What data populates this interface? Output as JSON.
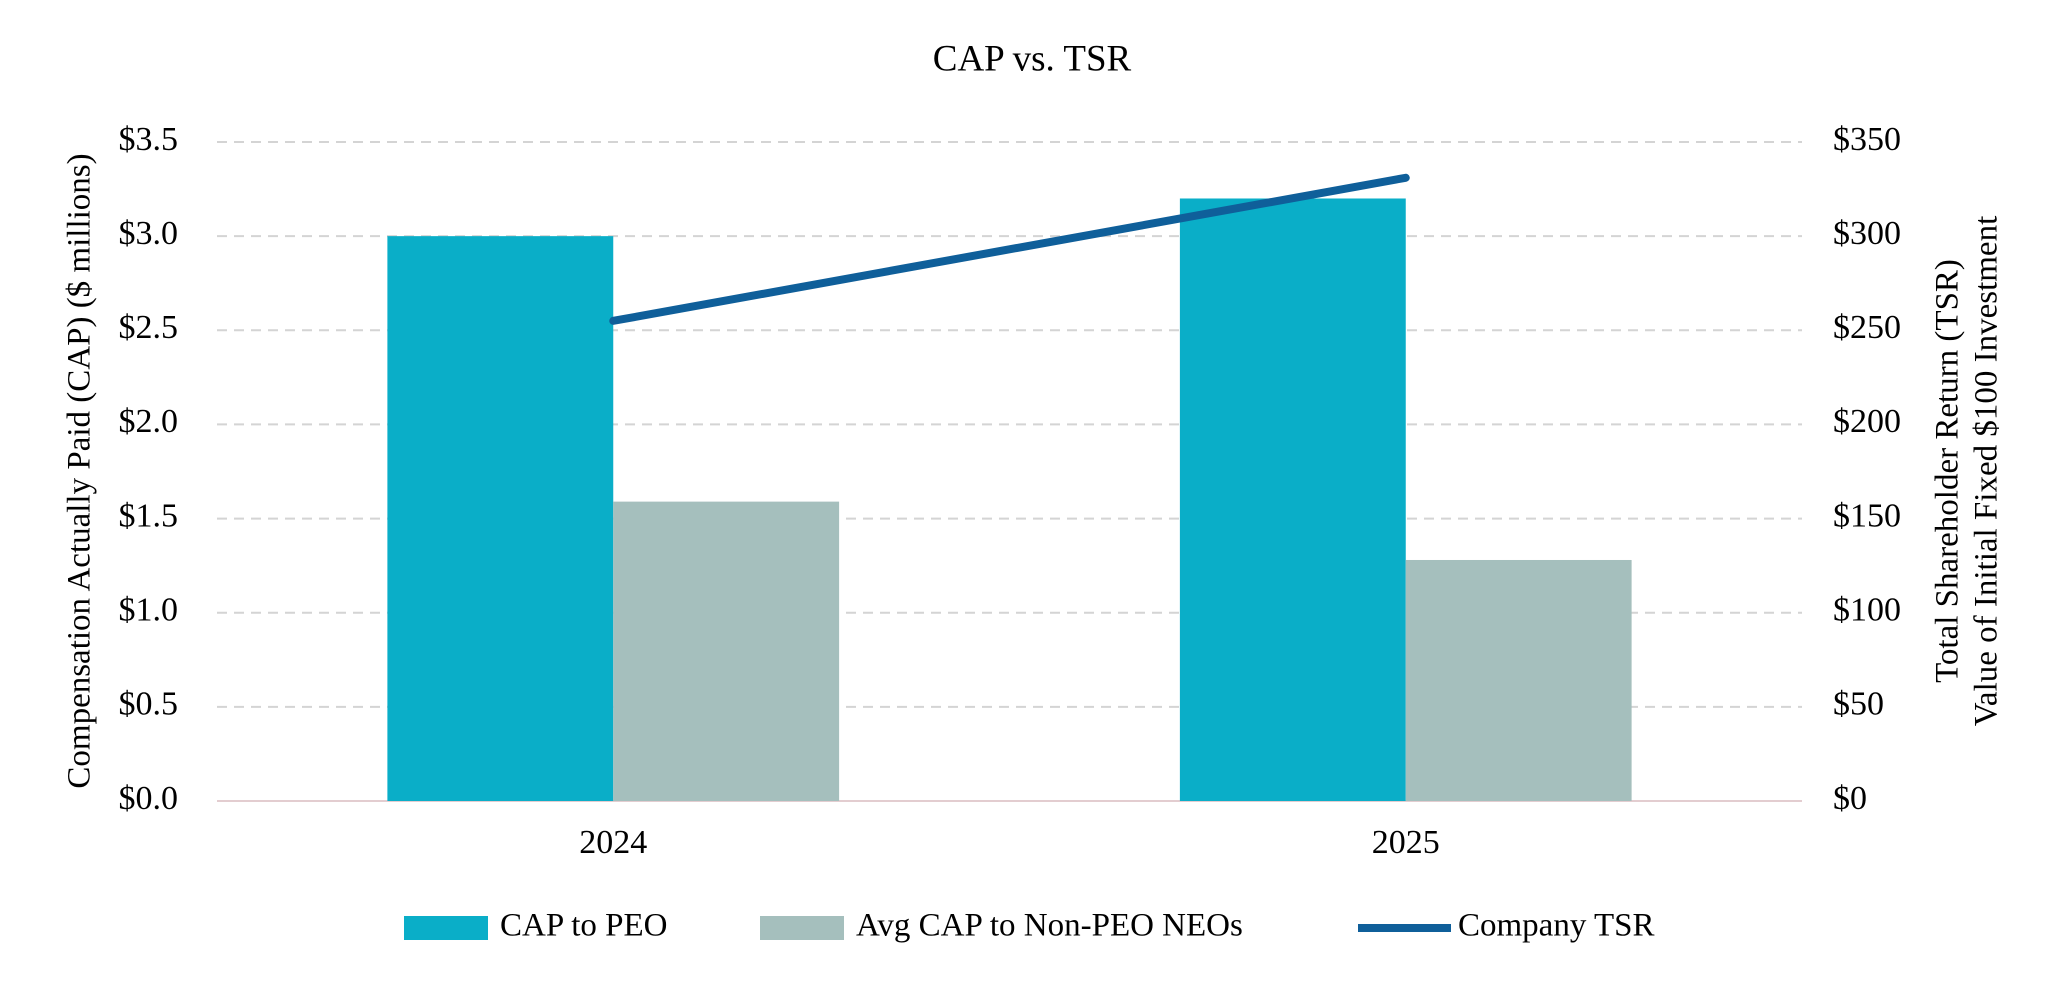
{
  "chart_data": {
    "type": "bar_line",
    "title": "CAP vs. TSR",
    "y_label": "Compensation Actually Paid (CAP) ($ millions)",
    "y2_label": [
      "Total Shareholder Return (TSR)",
      "Value of Initial Fixed $100 Investment"
    ],
    "categories": [
      "2024",
      "2025"
    ],
    "series": [
      {
        "name": "CAP to PEO",
        "type": "bar",
        "color": "#0aaec8",
        "values": [
          3.0,
          3.2
        ]
      },
      {
        "name": "Avg CAP to Non-PEO NEOs",
        "type": "bar",
        "color": "#a5bfbd",
        "values": [
          1.59,
          1.28
        ]
      },
      {
        "name": "Company TSR",
        "type": "line",
        "axis": "y2",
        "color": "#0f5f9a",
        "values": [
          255,
          331
        ]
      }
    ],
    "ylim": [
      0,
      3.5
    ],
    "yticks": [
      {
        "value": 0,
        "label": "$0.0"
      },
      {
        "value": 0.5,
        "label": "$0.5"
      },
      {
        "value": 1,
        "label": "$1.0"
      },
      {
        "value": 1.5,
        "label": "$1.5"
      },
      {
        "value": 2,
        "label": "$2.0"
      },
      {
        "value": 2.5,
        "label": "$2.5"
      },
      {
        "value": 3,
        "label": "$3.0"
      },
      {
        "value": 3.5,
        "label": "$3.5"
      }
    ],
    "y2lim": [
      0,
      350
    ],
    "y2ticks": [
      {
        "value": 0,
        "label": "$0"
      },
      {
        "value": 50,
        "label": "$50"
      },
      {
        "value": 100,
        "label": "$100"
      },
      {
        "value": 150,
        "label": "$150"
      },
      {
        "value": 200,
        "label": "$200"
      },
      {
        "value": 250,
        "label": "$250"
      },
      {
        "value": 300,
        "label": "$300"
      },
      {
        "value": 350,
        "label": "$350"
      }
    ],
    "grid": true,
    "legend": "bottom"
  }
}
